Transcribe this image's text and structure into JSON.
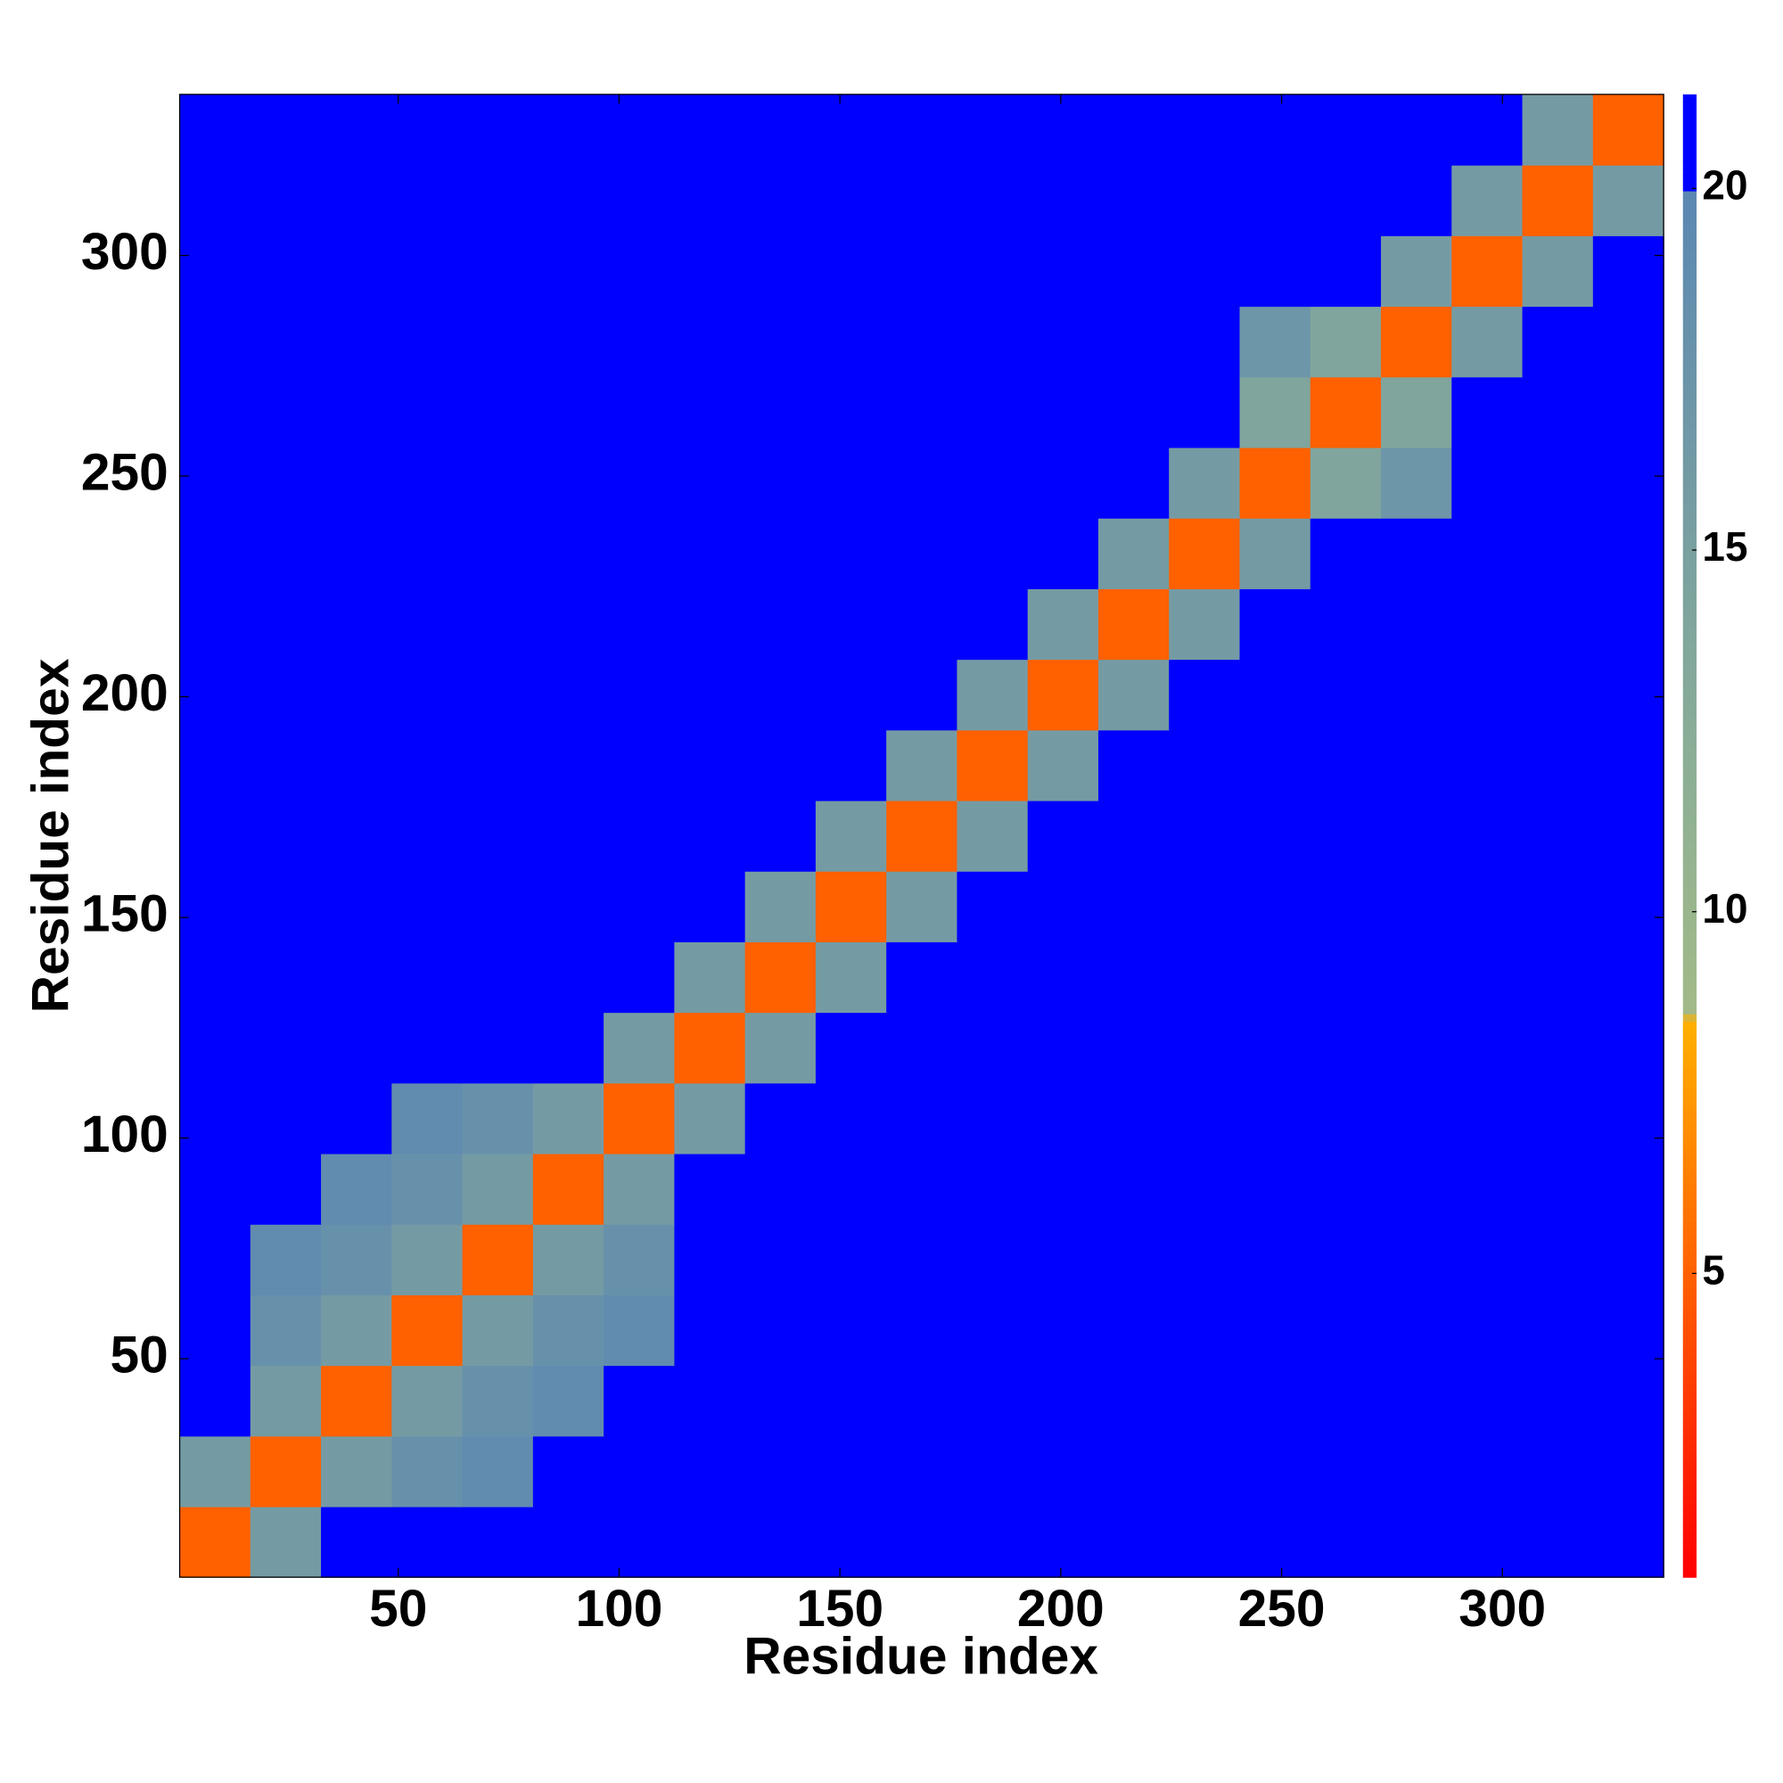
{
  "chart_data": {
    "type": "heatmap",
    "xlabel": "Residue index",
    "ylabel": "Residue index",
    "xlim": [
      0.5,
      336.5
    ],
    "ylim": [
      0.5,
      336.5
    ],
    "xticks": [
      50,
      100,
      150,
      200,
      250,
      300
    ],
    "yticks": [
      50,
      100,
      150,
      200,
      250,
      300
    ],
    "zlim": [
      0.8,
      21.3
    ],
    "zticks": [
      5,
      10,
      15,
      20
    ],
    "colorscale": [
      [
        0.8,
        "#ff0000"
      ],
      [
        5,
        "#ff6000"
      ],
      [
        8.5,
        "#ffb000"
      ],
      [
        8.6,
        "#a3ba88"
      ],
      [
        12,
        "#8caf96"
      ],
      [
        20,
        "#5b87b2"
      ],
      [
        20.01,
        "#0000ff"
      ]
    ],
    "values": [
      [
        5,
        16,
        21,
        21,
        21,
        21,
        21,
        21,
        21,
        21,
        21,
        21,
        21,
        21,
        21,
        21,
        21,
        21,
        21,
        21,
        21
      ],
      [
        16,
        5,
        16,
        18,
        19,
        21,
        21,
        21,
        21,
        21,
        21,
        21,
        21,
        21,
        21,
        21,
        21,
        21,
        21,
        21,
        21
      ],
      [
        21,
        16,
        5,
        16,
        18,
        19,
        21,
        21,
        21,
        21,
        21,
        21,
        21,
        21,
        21,
        21,
        21,
        21,
        21,
        21,
        21
      ],
      [
        21,
        18,
        16,
        5,
        16,
        18,
        19,
        21,
        21,
        21,
        21,
        21,
        21,
        21,
        21,
        21,
        21,
        21,
        21,
        21,
        21
      ],
      [
        21,
        19,
        18,
        16,
        5,
        16,
        18,
        21,
        21,
        21,
        21,
        21,
        21,
        21,
        21,
        21,
        21,
        21,
        21,
        21,
        21
      ],
      [
        21,
        21,
        19,
        18,
        16,
        5,
        16,
        21,
        21,
        21,
        21,
        21,
        21,
        21,
        21,
        21,
        21,
        21,
        21,
        21,
        21
      ],
      [
        21,
        21,
        21,
        19,
        18,
        16,
        5,
        16,
        21,
        21,
        21,
        21,
        21,
        21,
        21,
        21,
        21,
        21,
        21,
        21,
        21
      ],
      [
        21,
        21,
        21,
        21,
        21,
        21,
        16,
        5,
        16,
        21,
        21,
        21,
        21,
        21,
        21,
        21,
        21,
        21,
        21,
        21,
        21
      ],
      [
        21,
        21,
        21,
        21,
        21,
        21,
        21,
        16,
        5,
        16,
        21,
        21,
        21,
        21,
        21,
        21,
        21,
        21,
        21,
        21,
        21
      ],
      [
        21,
        21,
        21,
        21,
        21,
        21,
        21,
        21,
        16,
        5,
        16,
        21,
        21,
        21,
        21,
        21,
        21,
        21,
        21,
        21,
        21
      ],
      [
        21,
        21,
        21,
        21,
        21,
        21,
        21,
        21,
        21,
        16,
        5,
        16,
        21,
        21,
        21,
        21,
        21,
        21,
        21,
        21,
        21
      ],
      [
        21,
        21,
        21,
        21,
        21,
        21,
        21,
        21,
        21,
        21,
        16,
        5,
        16,
        21,
        21,
        21,
        21,
        21,
        21,
        21,
        21
      ],
      [
        21,
        21,
        21,
        21,
        21,
        21,
        21,
        21,
        21,
        21,
        21,
        16,
        5,
        16,
        21,
        21,
        21,
        21,
        21,
        21,
        21
      ],
      [
        21,
        21,
        21,
        21,
        21,
        21,
        21,
        21,
        21,
        21,
        21,
        21,
        16,
        5,
        16,
        21,
        21,
        21,
        21,
        21,
        21
      ],
      [
        21,
        21,
        21,
        21,
        21,
        21,
        21,
        21,
        21,
        21,
        21,
        21,
        21,
        16,
        5,
        16,
        21,
        21,
        21,
        21,
        21
      ],
      [
        21,
        21,
        21,
        21,
        21,
        21,
        21,
        21,
        21,
        21,
        21,
        21,
        21,
        21,
        16,
        5,
        14,
        17,
        21,
        21,
        21
      ],
      [
        21,
        21,
        21,
        21,
        21,
        21,
        21,
        21,
        21,
        21,
        21,
        21,
        21,
        21,
        21,
        14,
        5,
        14,
        21,
        21,
        21
      ],
      [
        21,
        21,
        21,
        21,
        21,
        21,
        21,
        21,
        21,
        21,
        21,
        21,
        21,
        21,
        21,
        17,
        14,
        5,
        16,
        21,
        21
      ],
      [
        21,
        21,
        21,
        21,
        21,
        21,
        21,
        21,
        21,
        21,
        21,
        21,
        21,
        21,
        21,
        21,
        21,
        16,
        5,
        16,
        21
      ],
      [
        21,
        21,
        21,
        21,
        21,
        21,
        21,
        21,
        21,
        21,
        21,
        21,
        21,
        21,
        21,
        21,
        21,
        21,
        16,
        5,
        16
      ],
      [
        21,
        21,
        21,
        21,
        21,
        21,
        21,
        21,
        21,
        21,
        21,
        21,
        21,
        21,
        21,
        21,
        21,
        21,
        21,
        16,
        5
      ]
    ]
  }
}
